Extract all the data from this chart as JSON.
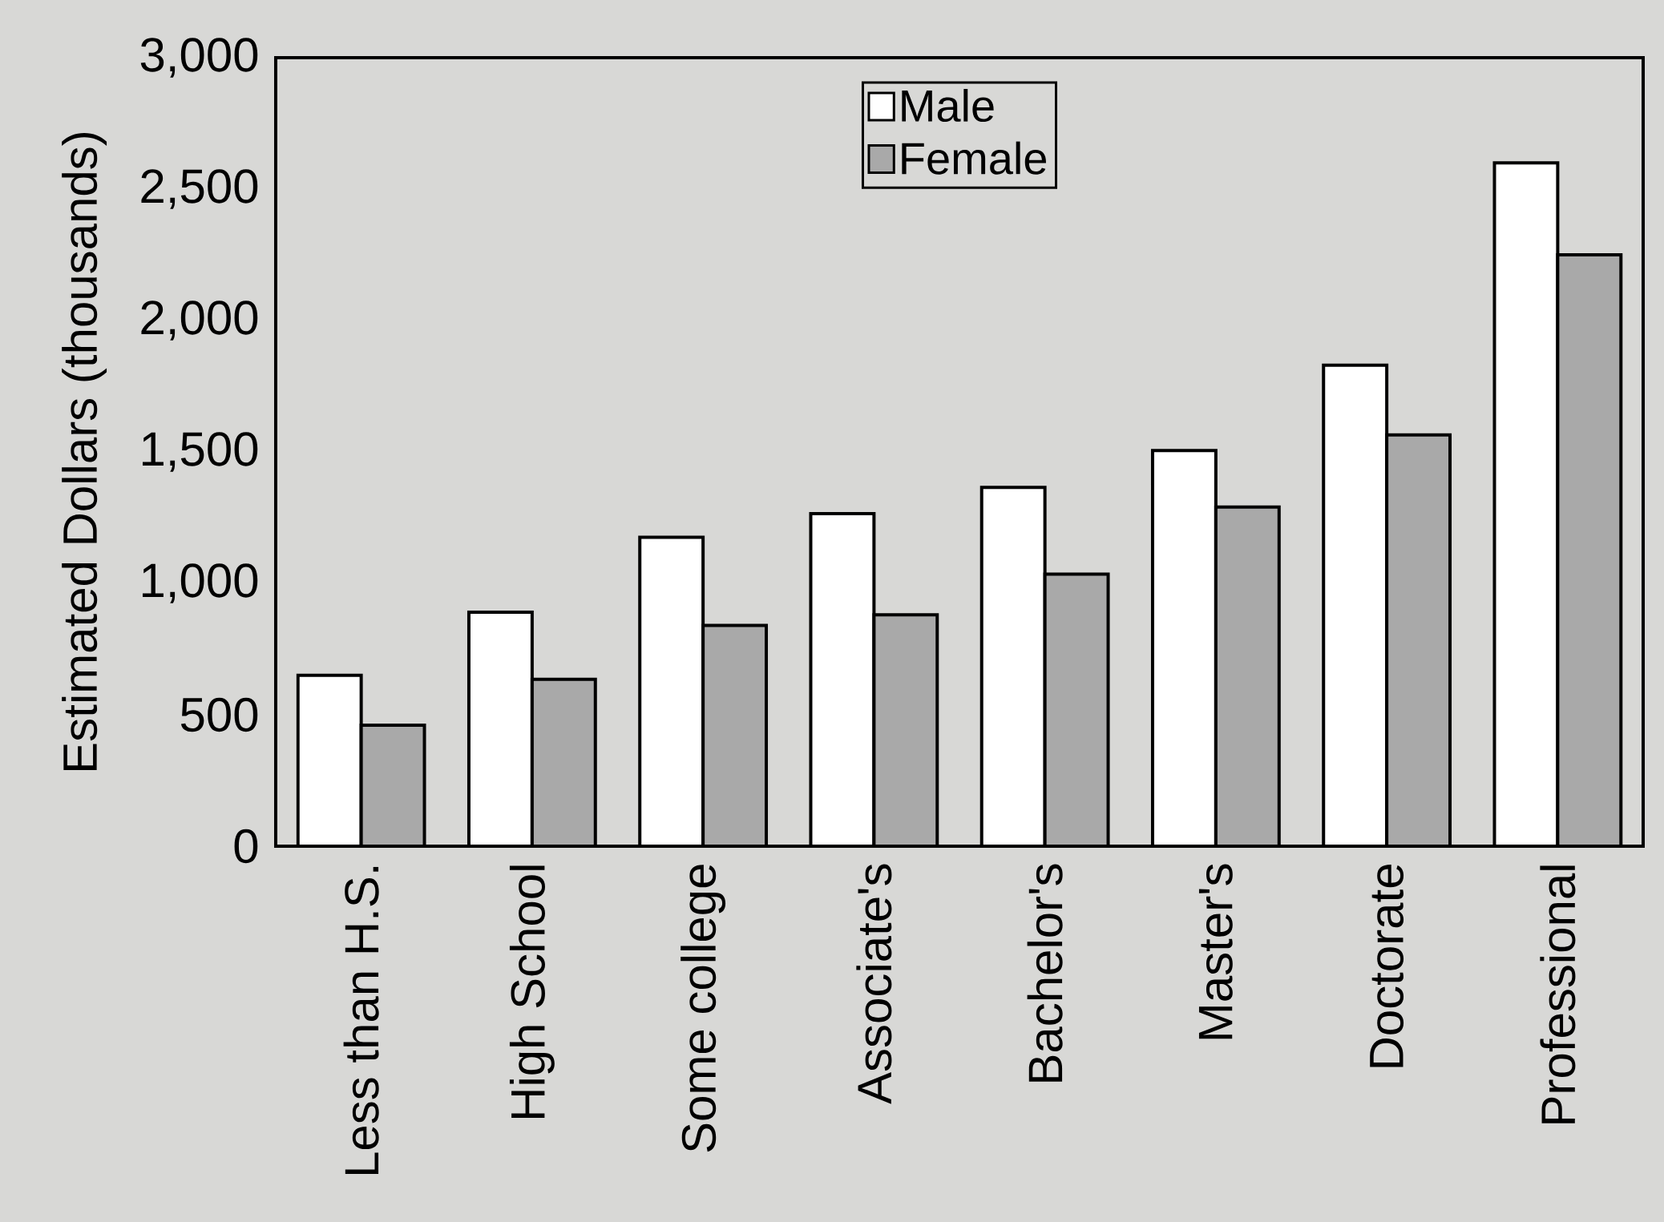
{
  "chart_data": {
    "type": "bar",
    "ylabel": "Estimated Dollars (thousands)",
    "categories": [
      "Less than H.S.",
      "High School",
      "Some college",
      "Associate's",
      "Bachelor's",
      "Master's",
      "Doctorate",
      "Professional"
    ],
    "series": [
      {
        "name": "Male",
        "color": "#ffffff",
        "values": [
          650,
          890,
          1175,
          1265,
          1365,
          1505,
          1830,
          2600
        ]
      },
      {
        "name": "Female",
        "color": "#a9a9a9",
        "values": [
          460,
          635,
          840,
          880,
          1035,
          1290,
          1565,
          2250
        ]
      }
    ],
    "ylim": [
      0,
      3000
    ],
    "yticks": [
      0,
      {
        "value": 500,
        "label": "500"
      },
      {
        "value": 1000,
        "label": "1,000"
      },
      {
        "value": 1500,
        "label": "1,500"
      },
      {
        "value": 2000,
        "label": "2,000"
      },
      {
        "value": 2500,
        "label": "2,500"
      },
      {
        "value": 3000,
        "label": "3,000"
      }
    ],
    "legend": "top",
    "grid": false
  }
}
